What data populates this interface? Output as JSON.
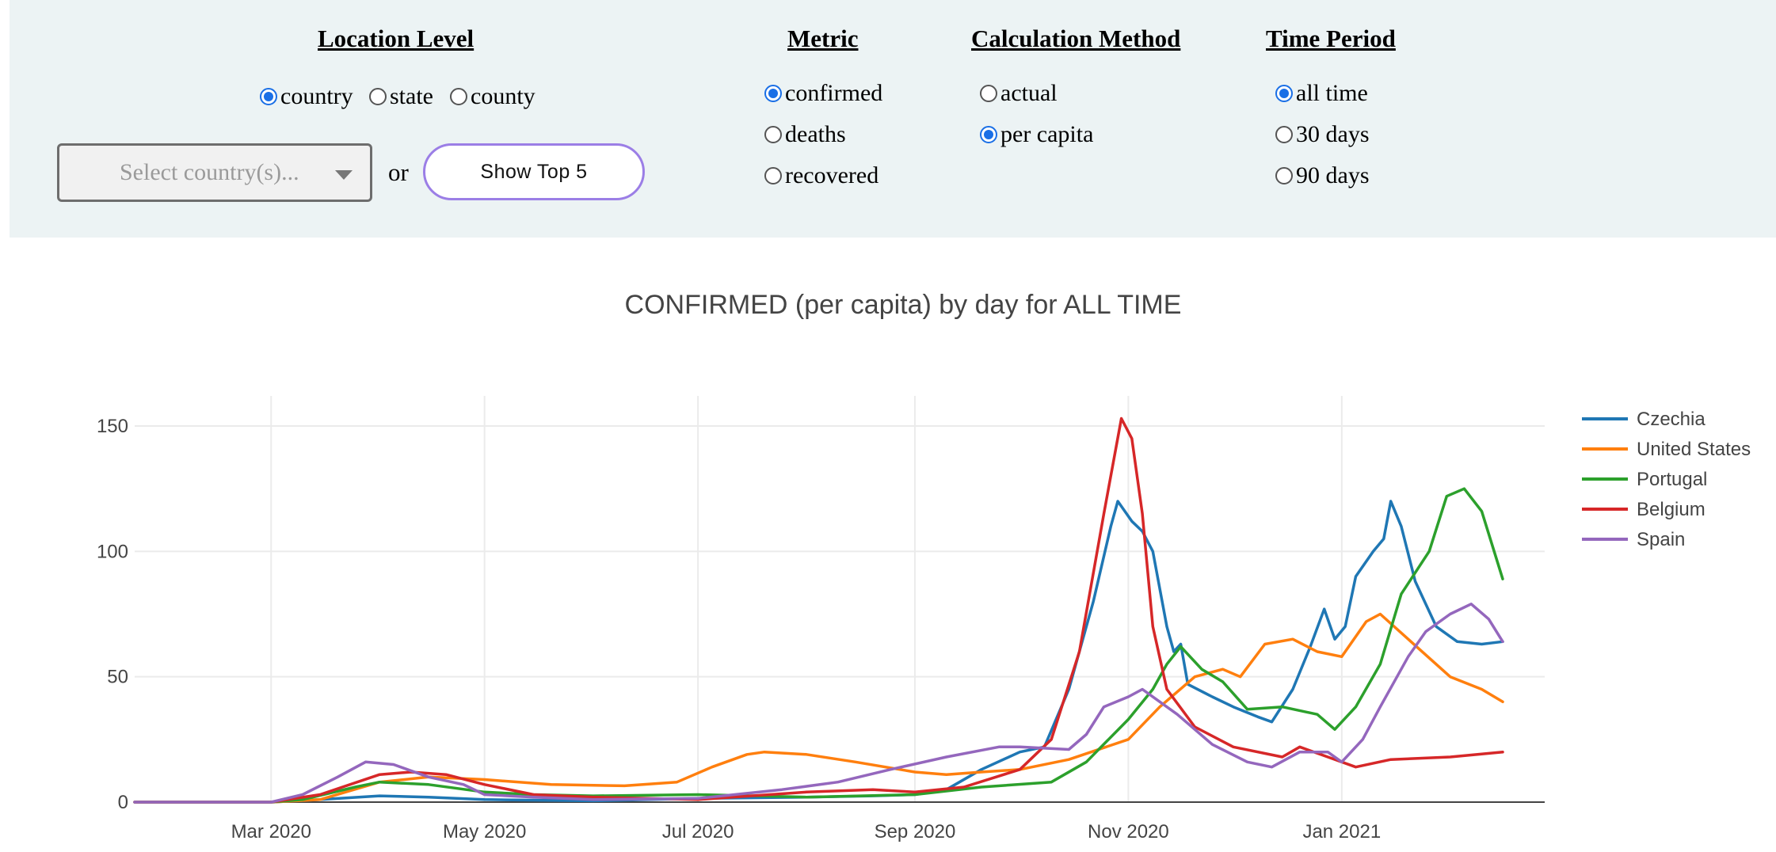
{
  "controls": {
    "location_level": {
      "title": "Location Level",
      "options": [
        "country",
        "state",
        "county"
      ],
      "selected": "country"
    },
    "metric": {
      "title": "Metric",
      "options": [
        "confirmed",
        "deaths",
        "recovered"
      ],
      "selected": "confirmed"
    },
    "calculation_method": {
      "title": "Calculation Method",
      "options": [
        "actual",
        "per capita"
      ],
      "selected": "per capita"
    },
    "time_period": {
      "title": "Time Period",
      "options": [
        "all time",
        "30 days",
        "90 days"
      ],
      "selected": "all time"
    },
    "select_placeholder": "Select country(s)...",
    "or_label": "or",
    "top5_button": "Show Top 5"
  },
  "accent_color": "#1a6fe6",
  "button_border_color": "#9b7ee6",
  "chart_data": {
    "type": "line",
    "title": "CONFIRMED (per capita) by day for ALL TIME",
    "xlabel": "",
    "ylabel": "",
    "x_type": "date",
    "xlim": [
      "2020-01-22",
      "2021-02-28"
    ],
    "ylim": [
      0,
      162
    ],
    "x_ticks": [
      {
        "date": "2020-03-01",
        "label": "Mar 2020"
      },
      {
        "date": "2020-05-01",
        "label": "May 2020"
      },
      {
        "date": "2020-07-01",
        "label": "Jul 2020"
      },
      {
        "date": "2020-09-01",
        "label": "Sep 2020"
      },
      {
        "date": "2020-11-01",
        "label": "Nov 2020"
      },
      {
        "date": "2021-01-01",
        "label": "Jan 2021"
      }
    ],
    "y_ticks": [
      0,
      50,
      100,
      150
    ],
    "grid": true,
    "legend_position": "right",
    "series": [
      {
        "name": "Czechia",
        "color": "#1f77b4",
        "points": [
          [
            "2020-01-22",
            0
          ],
          [
            "2020-03-01",
            0
          ],
          [
            "2020-03-15",
            1
          ],
          [
            "2020-04-01",
            2.5
          ],
          [
            "2020-04-15",
            2
          ],
          [
            "2020-05-01",
            1
          ],
          [
            "2020-06-01",
            0.5
          ],
          [
            "2020-07-01",
            1.5
          ],
          [
            "2020-08-01",
            2
          ],
          [
            "2020-08-20",
            2.5
          ],
          [
            "2020-09-01",
            3
          ],
          [
            "2020-09-10",
            5
          ],
          [
            "2020-09-20",
            13
          ],
          [
            "2020-10-01",
            20
          ],
          [
            "2020-10-08",
            22
          ],
          [
            "2020-10-15",
            45
          ],
          [
            "2020-10-22",
            80
          ],
          [
            "2020-10-27",
            110
          ],
          [
            "2020-10-29",
            120
          ],
          [
            "2020-11-02",
            112
          ],
          [
            "2020-11-05",
            108
          ],
          [
            "2020-11-08",
            100
          ],
          [
            "2020-11-12",
            70
          ],
          [
            "2020-11-14",
            60
          ],
          [
            "2020-11-16",
            63
          ],
          [
            "2020-11-18",
            47
          ],
          [
            "2020-11-25",
            42
          ],
          [
            "2020-12-01",
            38
          ],
          [
            "2020-12-08",
            34
          ],
          [
            "2020-12-12",
            32
          ],
          [
            "2020-12-18",
            45
          ],
          [
            "2020-12-23",
            62
          ],
          [
            "2020-12-27",
            77
          ],
          [
            "2020-12-30",
            65
          ],
          [
            "2021-01-02",
            70
          ],
          [
            "2021-01-05",
            90
          ],
          [
            "2021-01-10",
            100
          ],
          [
            "2021-01-13",
            105
          ],
          [
            "2021-01-15",
            120
          ],
          [
            "2021-01-18",
            110
          ],
          [
            "2021-01-22",
            88
          ],
          [
            "2021-01-28",
            70
          ],
          [
            "2021-02-03",
            64
          ],
          [
            "2021-02-10",
            63
          ],
          [
            "2021-02-16",
            64
          ]
        ]
      },
      {
        "name": "United States",
        "color": "#ff7f0e",
        "points": [
          [
            "2020-01-22",
            0
          ],
          [
            "2020-03-01",
            0
          ],
          [
            "2020-03-15",
            1
          ],
          [
            "2020-04-01",
            8
          ],
          [
            "2020-04-15",
            10
          ],
          [
            "2020-05-01",
            9
          ],
          [
            "2020-05-20",
            7
          ],
          [
            "2020-06-10",
            6.5
          ],
          [
            "2020-06-25",
            8
          ],
          [
            "2020-07-05",
            14
          ],
          [
            "2020-07-15",
            19
          ],
          [
            "2020-07-20",
            20
          ],
          [
            "2020-08-01",
            19
          ],
          [
            "2020-08-15",
            16
          ],
          [
            "2020-09-01",
            12
          ],
          [
            "2020-09-10",
            11
          ],
          [
            "2020-09-20",
            12
          ],
          [
            "2020-10-01",
            13
          ],
          [
            "2020-10-15",
            17
          ],
          [
            "2020-11-01",
            25
          ],
          [
            "2020-11-10",
            38
          ],
          [
            "2020-11-20",
            50
          ],
          [
            "2020-11-28",
            53
          ],
          [
            "2020-12-03",
            50
          ],
          [
            "2020-12-10",
            63
          ],
          [
            "2020-12-18",
            65
          ],
          [
            "2020-12-25",
            60
          ],
          [
            "2021-01-01",
            58
          ],
          [
            "2021-01-08",
            72
          ],
          [
            "2021-01-12",
            75
          ],
          [
            "2021-01-20",
            65
          ],
          [
            "2021-02-01",
            50
          ],
          [
            "2021-02-10",
            45
          ],
          [
            "2021-02-16",
            40
          ]
        ]
      },
      {
        "name": "Portugal",
        "color": "#2ca02c",
        "points": [
          [
            "2020-01-22",
            0
          ],
          [
            "2020-03-01",
            0
          ],
          [
            "2020-03-10",
            1
          ],
          [
            "2020-03-25",
            6
          ],
          [
            "2020-04-01",
            8
          ],
          [
            "2020-04-15",
            7
          ],
          [
            "2020-05-01",
            4
          ],
          [
            "2020-05-15",
            3
          ],
          [
            "2020-06-01",
            2.5
          ],
          [
            "2020-07-01",
            3
          ],
          [
            "2020-08-01",
            2
          ],
          [
            "2020-09-01",
            3
          ],
          [
            "2020-09-20",
            6
          ],
          [
            "2020-10-10",
            8
          ],
          [
            "2020-10-20",
            16
          ],
          [
            "2020-11-01",
            33
          ],
          [
            "2020-11-08",
            45
          ],
          [
            "2020-11-12",
            55
          ],
          [
            "2020-11-16",
            62
          ],
          [
            "2020-11-22",
            53
          ],
          [
            "2020-11-28",
            48
          ],
          [
            "2020-12-05",
            37
          ],
          [
            "2020-12-15",
            38
          ],
          [
            "2020-12-25",
            35
          ],
          [
            "2020-12-30",
            29
          ],
          [
            "2021-01-05",
            38
          ],
          [
            "2021-01-12",
            55
          ],
          [
            "2021-01-18",
            83
          ],
          [
            "2021-01-26",
            100
          ],
          [
            "2021-01-31",
            122
          ],
          [
            "2021-02-05",
            125
          ],
          [
            "2021-02-10",
            116
          ],
          [
            "2021-02-16",
            89
          ]
        ]
      },
      {
        "name": "Belgium",
        "color": "#d62728",
        "points": [
          [
            "2020-01-22",
            0
          ],
          [
            "2020-03-01",
            0
          ],
          [
            "2020-03-15",
            3
          ],
          [
            "2020-04-01",
            11
          ],
          [
            "2020-04-10",
            12
          ],
          [
            "2020-04-20",
            11
          ],
          [
            "2020-05-01",
            7
          ],
          [
            "2020-05-15",
            3
          ],
          [
            "2020-06-01",
            2
          ],
          [
            "2020-07-01",
            1
          ],
          [
            "2020-08-01",
            4
          ],
          [
            "2020-08-20",
            5
          ],
          [
            "2020-09-01",
            4
          ],
          [
            "2020-09-15",
            6
          ],
          [
            "2020-10-01",
            13
          ],
          [
            "2020-10-10",
            25
          ],
          [
            "2020-10-18",
            60
          ],
          [
            "2020-10-25",
            115
          ],
          [
            "2020-10-30",
            153
          ],
          [
            "2020-11-02",
            145
          ],
          [
            "2020-11-05",
            115
          ],
          [
            "2020-11-08",
            70
          ],
          [
            "2020-11-12",
            45
          ],
          [
            "2020-11-20",
            30
          ],
          [
            "2020-12-01",
            22
          ],
          [
            "2020-12-15",
            18
          ],
          [
            "2020-12-20",
            22
          ],
          [
            "2020-12-28",
            18
          ],
          [
            "2021-01-05",
            14
          ],
          [
            "2021-01-15",
            17
          ],
          [
            "2021-02-01",
            18
          ],
          [
            "2021-02-16",
            20
          ]
        ]
      },
      {
        "name": "Spain",
        "color": "#9467bd",
        "points": [
          [
            "2020-01-22",
            0
          ],
          [
            "2020-03-01",
            0
          ],
          [
            "2020-03-10",
            3
          ],
          [
            "2020-03-20",
            10
          ],
          [
            "2020-03-28",
            16
          ],
          [
            "2020-04-05",
            15
          ],
          [
            "2020-04-15",
            10
          ],
          [
            "2020-04-25",
            7
          ],
          [
            "2020-05-01",
            3
          ],
          [
            "2020-05-15",
            2
          ],
          [
            "2020-06-01",
            1
          ],
          [
            "2020-07-01",
            1.5
          ],
          [
            "2020-07-25",
            5
          ],
          [
            "2020-08-10",
            8
          ],
          [
            "2020-08-25",
            13
          ],
          [
            "2020-09-10",
            18
          ],
          [
            "2020-09-25",
            22
          ],
          [
            "2020-10-01",
            22
          ],
          [
            "2020-10-15",
            21
          ],
          [
            "2020-10-20",
            27
          ],
          [
            "2020-10-25",
            38
          ],
          [
            "2020-11-01",
            42
          ],
          [
            "2020-11-05",
            45
          ],
          [
            "2020-11-10",
            40
          ],
          [
            "2020-11-15",
            35
          ],
          [
            "2020-11-25",
            23
          ],
          [
            "2020-12-05",
            16
          ],
          [
            "2020-12-12",
            14
          ],
          [
            "2020-12-20",
            20
          ],
          [
            "2020-12-28",
            20
          ],
          [
            "2021-01-01",
            16
          ],
          [
            "2021-01-07",
            25
          ],
          [
            "2021-01-12",
            38
          ],
          [
            "2021-01-20",
            58
          ],
          [
            "2021-01-25",
            68
          ],
          [
            "2021-02-01",
            75
          ],
          [
            "2021-02-07",
            79
          ],
          [
            "2021-02-12",
            73
          ],
          [
            "2021-02-16",
            64
          ]
        ]
      }
    ]
  }
}
